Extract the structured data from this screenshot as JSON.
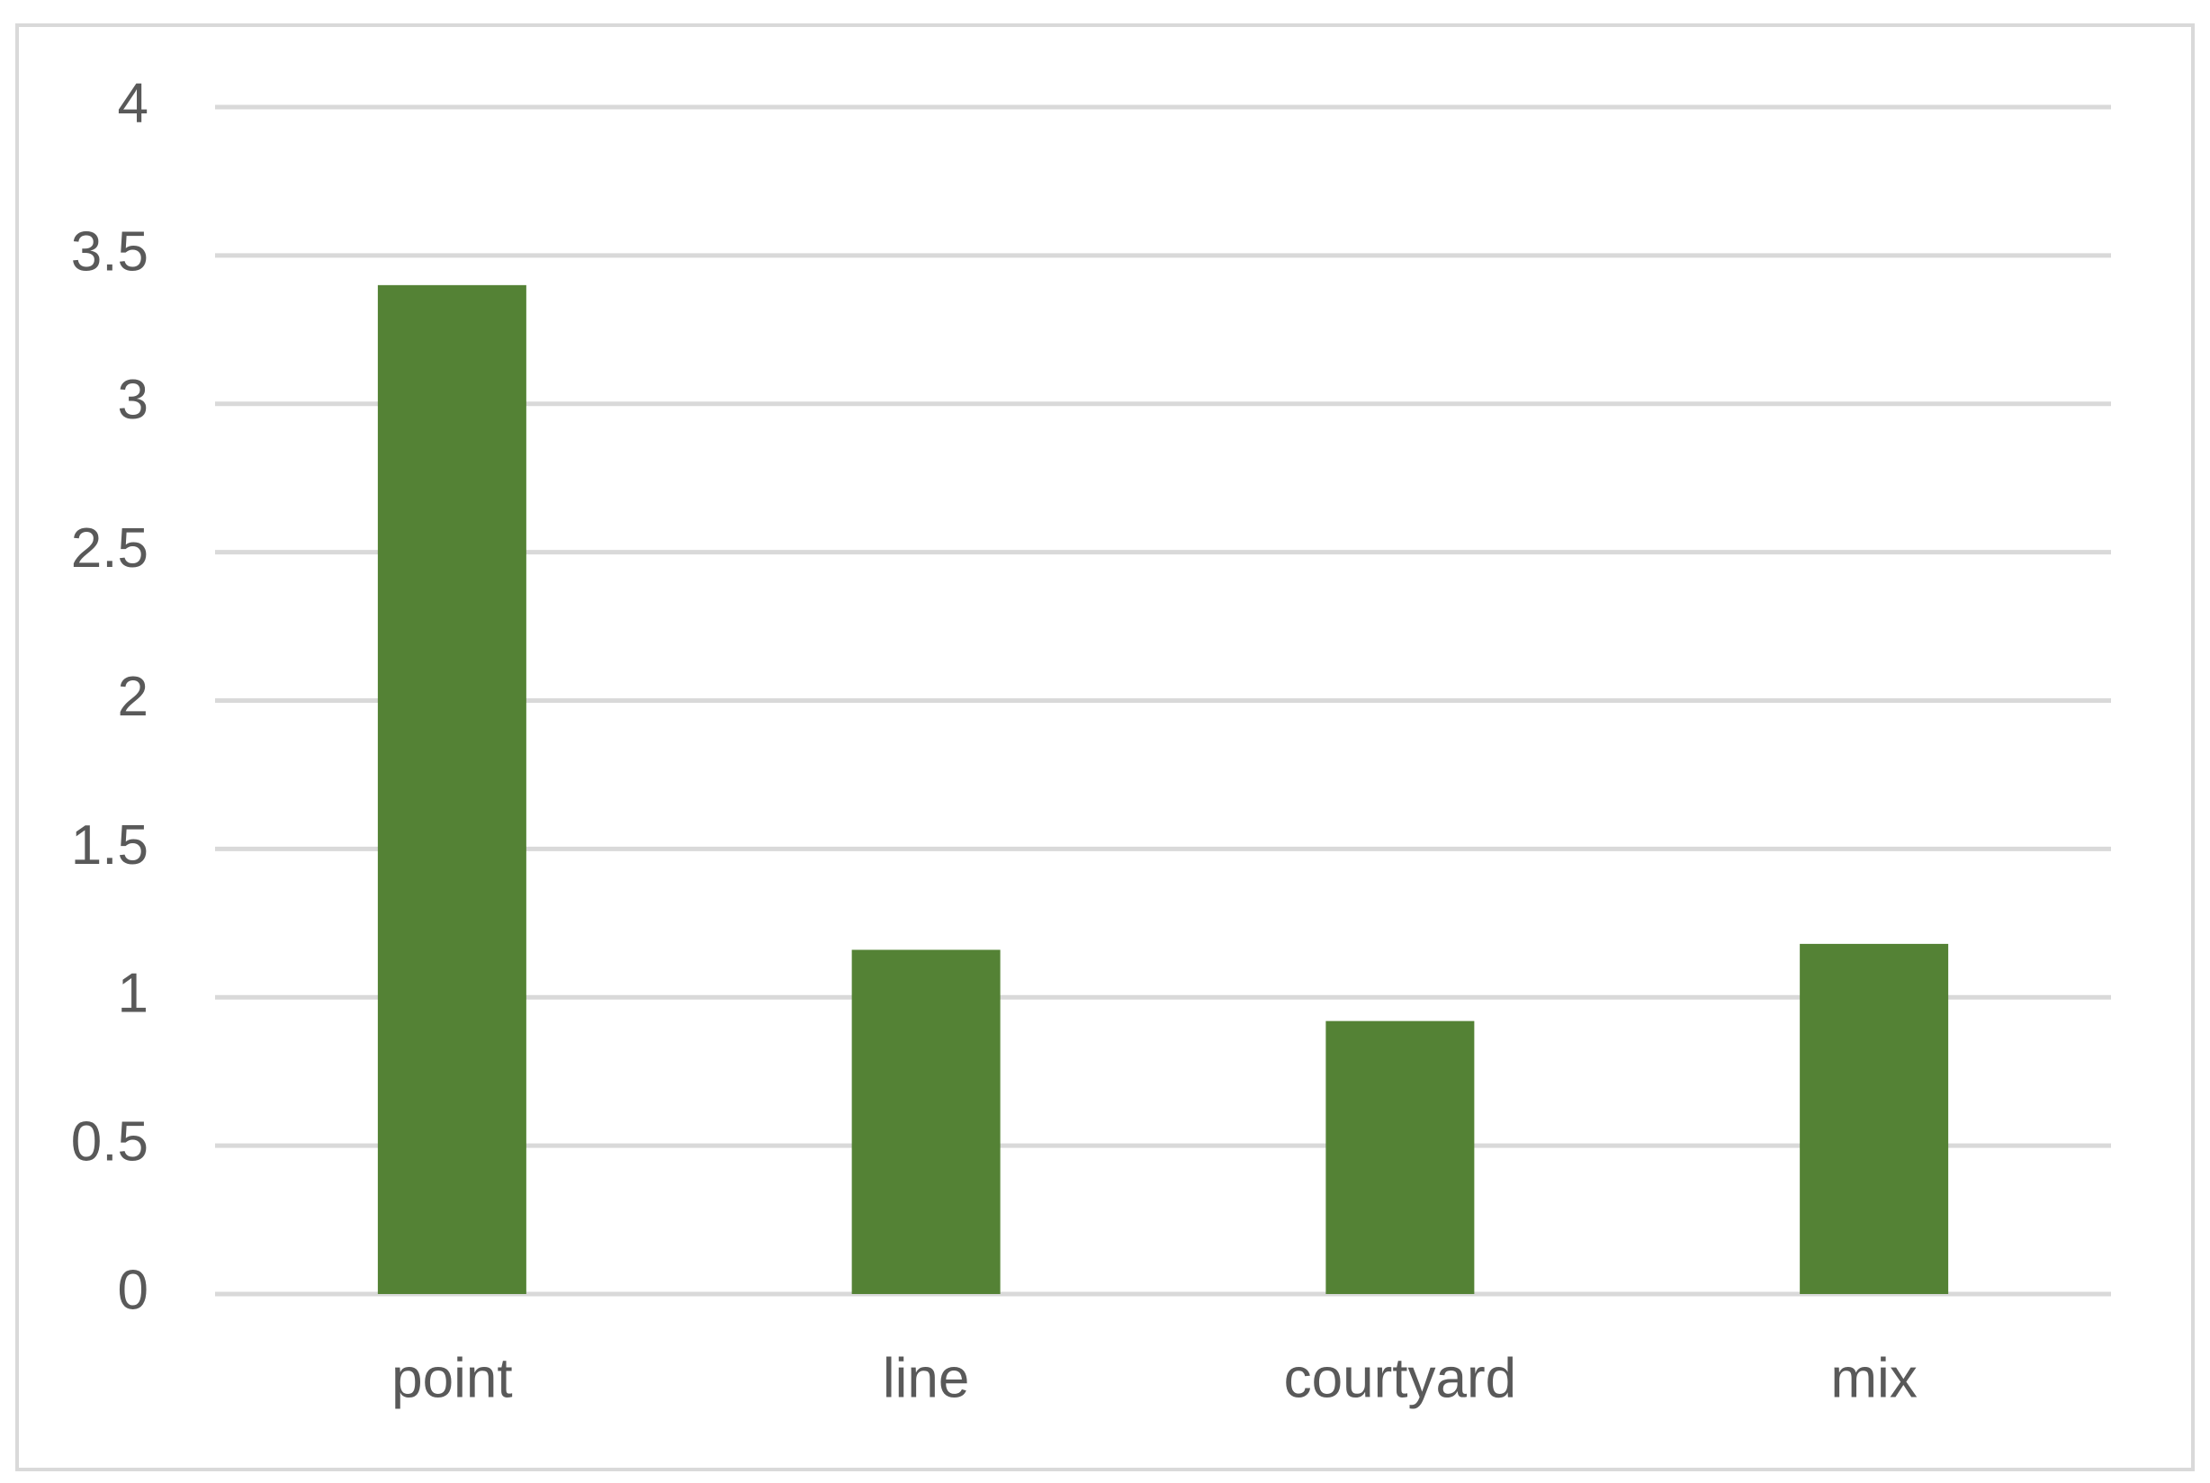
{
  "chart_data": {
    "type": "bar",
    "categories": [
      "point",
      "line",
      "courtyard",
      "mix"
    ],
    "values": [
      3.4,
      1.16,
      0.92,
      1.18
    ],
    "color": "#548235",
    "ylim": [
      0,
      4
    ],
    "yticks": [
      0,
      0.5,
      1,
      1.5,
      2,
      2.5,
      3,
      3.5,
      4
    ],
    "grid": true
  }
}
